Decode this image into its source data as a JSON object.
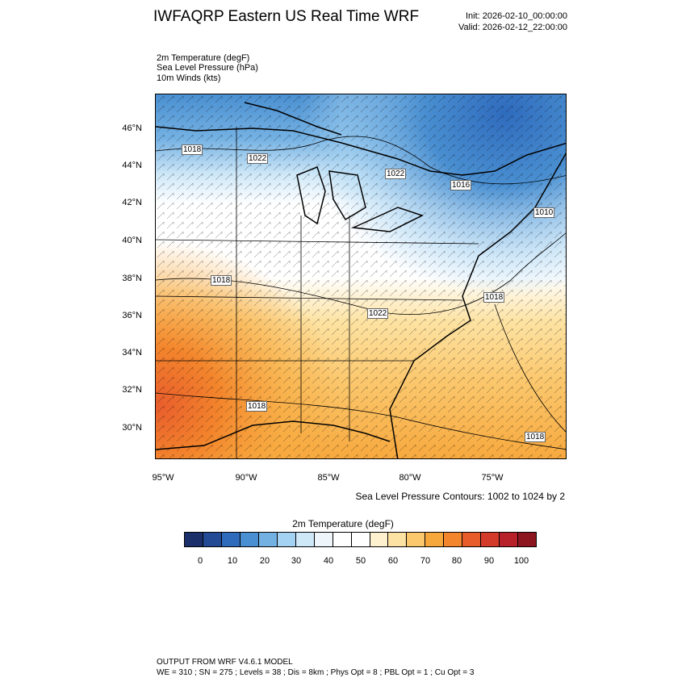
{
  "header": {
    "title": "IWFAQRP Eastern US Real Time WRF",
    "init": "Init: 2026-02-10_00:00:00",
    "valid": "Valid: 2026-02-12_22:00:00"
  },
  "fields": [
    "2m Temperature   (degF)",
    "Sea Level Pressure   (hPa)",
    "10m Winds   (kts)"
  ],
  "axes": {
    "lat_labels": [
      "46°N",
      "44°N",
      "42°N",
      "40°N",
      "38°N",
      "36°N",
      "34°N",
      "32°N",
      "30°N"
    ],
    "lon_labels": [
      "95°W",
      "90°W",
      "85°W",
      "80°W",
      "75°W"
    ]
  },
  "pressure_labels": [
    "1018",
    "1022",
    "1022",
    "1016",
    "1010",
    "1018",
    "1018",
    "1022",
    "1018",
    "1018"
  ],
  "contour_note": "Sea Level Pressure Contours: 1002 to 1024 by 2",
  "colorbar": {
    "title": "2m Temperature  (degF)",
    "labels": [
      "0",
      "10",
      "20",
      "30",
      "40",
      "50",
      "60",
      "70",
      "80",
      "90",
      "100"
    ],
    "colors": [
      "#1b2f6b",
      "#234a94",
      "#2f6bbd",
      "#4a8fd1",
      "#74b1e3",
      "#a4d2f2",
      "#cfe8f8",
      "#eef6fb",
      "#ffffff",
      "#ffffff",
      "#fdf1cf",
      "#fde3a3",
      "#fbc86e",
      "#f7a83d",
      "#f3852c",
      "#e85c2c",
      "#d43a2a",
      "#b8202a",
      "#8c1520"
    ]
  },
  "footer": {
    "line1": "OUTPUT FROM WRF V4.6.1 MODEL",
    "line2": "WE = 310 ; SN = 275 ; Levels = 38 ; Dis = 8km ; Phys Opt = 8 ; PBL Opt = 1 ; Cu Opt = 3"
  }
}
